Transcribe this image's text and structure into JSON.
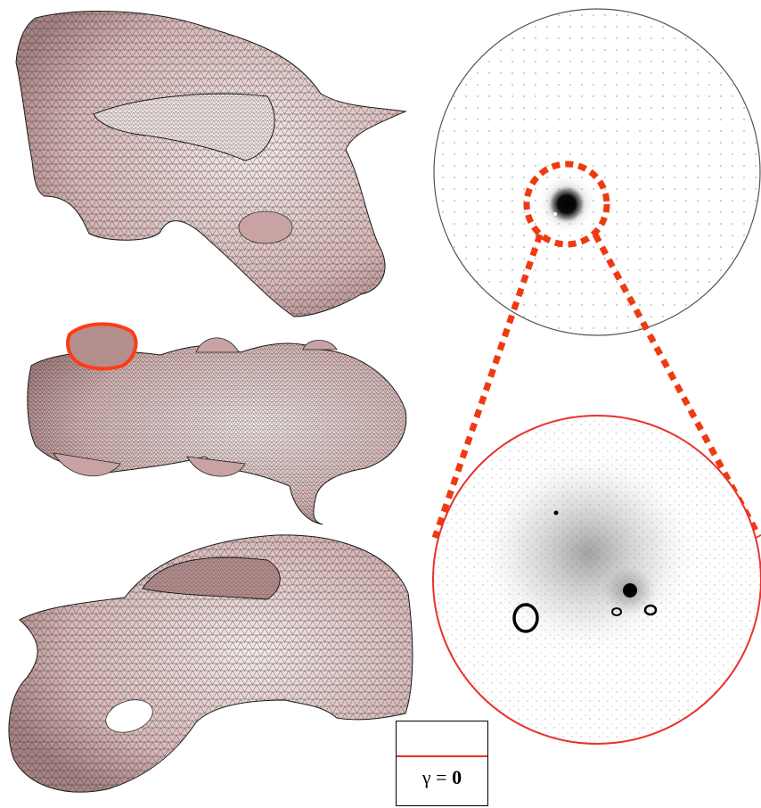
{
  "legend": {
    "symbol": "γ",
    "equals": " = ",
    "value": "0",
    "line_color": "#e8322b"
  },
  "colors": {
    "mesh_fill": "#e9cfcf",
    "mesh_shadow": "#bf9c9c",
    "mesh_highlight": "#f6efef",
    "boundary_highlight": "#ff3b14",
    "zoom_dash": "#ee3a12",
    "disk_outline_top": "#555555",
    "disk_outline_bottom": "#e8322b"
  },
  "icons": [
    "mesh-pig-side",
    "mesh-pig-top",
    "mesh-pig-bottom",
    "parameter-disk",
    "zoom-disk"
  ]
}
